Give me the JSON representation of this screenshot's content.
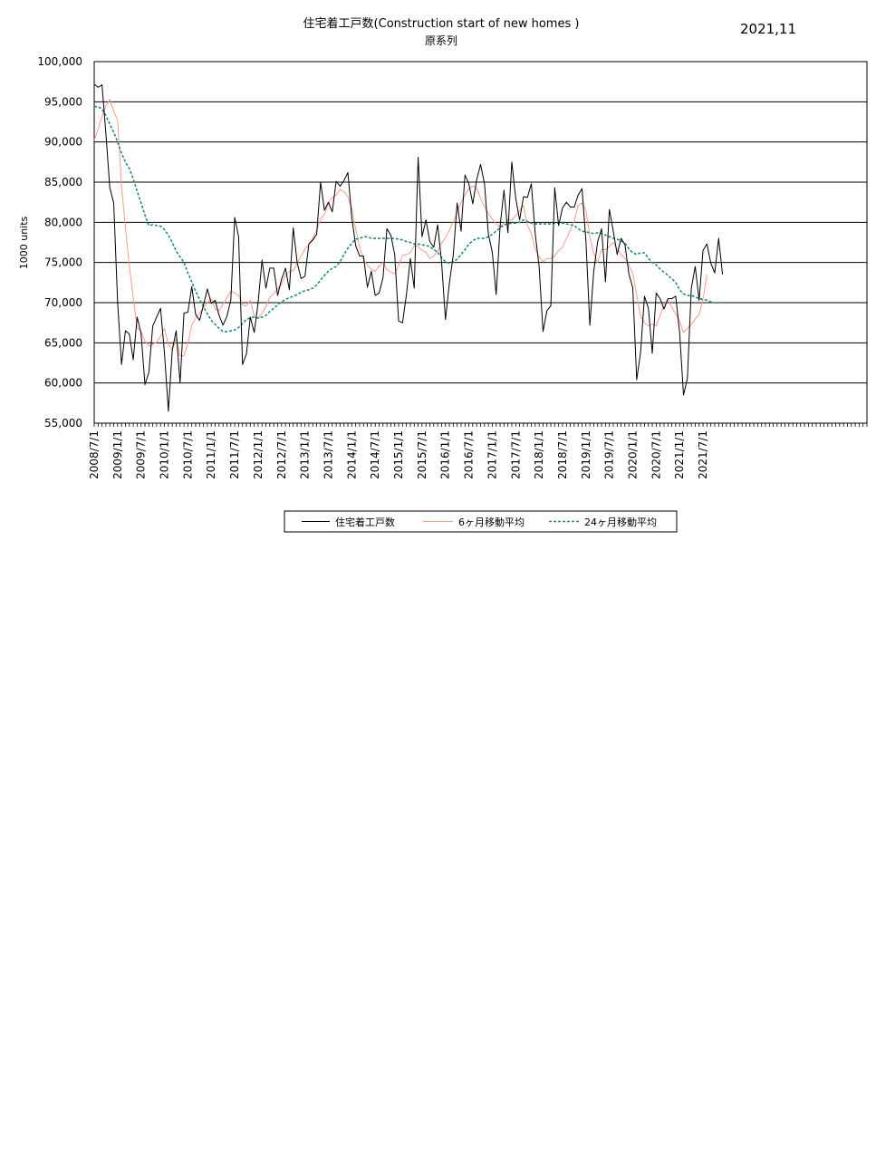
{
  "header": {
    "title": "住宅着工戸数(Construction start of new homes )",
    "subtitle": "原系列",
    "date": "2021,11"
  },
  "chart_data": {
    "type": "line",
    "title": "住宅着工戸数(Construction start of new homes )",
    "subtitle": "原系列",
    "ylabel": "1000 units",
    "xlabel": "",
    "ylim": [
      55000,
      100000
    ],
    "y_ticks": [
      "100,000",
      "95,000",
      "90,000",
      "85,000",
      "80,000",
      "75,000",
      "70,000",
      "65,000",
      "60,000",
      "55,000"
    ],
    "x_tick_labels": [
      "2008/7/1",
      "2009/1/1",
      "2009/7/1",
      "2010/1/1",
      "2010/7/1",
      "2011/1/1",
      "2011/7/1",
      "2012/1/1",
      "2012/7/1",
      "2013/1/1",
      "2013/7/1",
      "2014/1/1",
      "2014/7/1",
      "2015/1/1",
      "2015/7/1",
      "2016/1/1",
      "2016/7/1",
      "2017/1/1",
      "2017/7/1",
      "2018/1/1",
      "2018/7/1",
      "2019/1/1",
      "2019/7/1",
      "2020/1/1",
      "2020/7/1",
      "2021/1/1",
      "2021/7/1"
    ],
    "x_start": "2008/7/1",
    "x_end": "2025/1/1",
    "grid": "horizontal",
    "legend_position": "bottom",
    "series": [
      {
        "name": "住宅着工戸数",
        "color": "#000000",
        "style": "solid",
        "values": [
          97200,
          96800,
          97100,
          91000,
          84300,
          82400,
          70000,
          62300,
          66500,
          66100,
          62900,
          68200,
          66200,
          59800,
          61300,
          67100,
          68200,
          69300,
          63700,
          56500,
          64100,
          66500,
          60000,
          68700,
          68800,
          72000,
          68500,
          67800,
          69700,
          71700,
          69900,
          70300,
          68400,
          67200,
          68300,
          70300,
          80600,
          78200,
          62300,
          63600,
          68200,
          66300,
          70000,
          75300,
          71800,
          74300,
          74300,
          70900,
          72900,
          74300,
          71600,
          79300,
          75000,
          73000,
          73300,
          77300,
          77800,
          78500,
          85000,
          81500,
          82500,
          81300,
          85100,
          84500,
          85200,
          86200,
          80600,
          77100,
          75800,
          75800,
          71900,
          73900,
          70900,
          71200,
          73100,
          79200,
          78400,
          76000,
          67700,
          67500,
          71000,
          75500,
          71800,
          88100,
          78200,
          80300,
          77600,
          76900,
          79700,
          75100,
          67900,
          72400,
          75900,
          82400,
          78900,
          85900,
          84800,
          82300,
          85300,
          87200,
          84800,
          78500,
          76300,
          71000,
          79500,
          84000,
          78700,
          87500,
          83000,
          80300,
          83200,
          83100,
          84800,
          78600,
          74500,
          66400,
          69000,
          69600,
          84300,
          79600,
          81800,
          82500,
          81900,
          81900,
          83400,
          84200,
          77600,
          67200,
          73900,
          77600,
          79200,
          72600,
          81600,
          78900,
          76000,
          78000,
          77200,
          73600,
          71800,
          60400,
          63800,
          70800,
          69300,
          63700,
          71200,
          70500,
          69200,
          70500,
          70500,
          70800,
          66300,
          58500,
          60600,
          71800,
          74500,
          70300,
          76500,
          77300,
          74900,
          73700,
          78000,
          73500
        ]
      },
      {
        "name": "6ヶ月移動平均",
        "color": "#ff9a8a",
        "style": "solid",
        "values": [
          90200,
          91600,
          93200,
          94500,
          95300,
          93800,
          92700,
          84500,
          79300,
          74600,
          70600,
          66900,
          66400,
          65200,
          64600,
          64800,
          65100,
          65800,
          66800,
          64800,
          64100,
          65500,
          63400,
          63400,
          64900,
          67200,
          68100,
          68700,
          69400,
          70000,
          70500,
          69200,
          69000,
          69800,
          70600,
          71400,
          71200,
          70900,
          69700,
          69600,
          70300,
          68300,
          68000,
          68700,
          69500,
          70700,
          71100,
          71700,
          72300,
          73400,
          73900,
          74000,
          74900,
          75800,
          76700,
          77200,
          78000,
          79000,
          80400,
          81000,
          82300,
          83100,
          83400,
          84100,
          83800,
          83200,
          81700,
          79200,
          76900,
          75300,
          74700,
          74100,
          73900,
          74500,
          75000,
          74100,
          73800,
          73600,
          74600,
          75900,
          76000,
          76200,
          77100,
          77000,
          76500,
          76300,
          75500,
          75800,
          76400,
          77400,
          78100,
          79000,
          80100,
          81200,
          82500,
          83400,
          84200,
          84500,
          84300,
          83000,
          82000,
          81100,
          80400,
          79800,
          79400,
          79900,
          80300,
          80300,
          80800,
          81500,
          82100,
          79600,
          78600,
          76700,
          75700,
          75100,
          75500,
          75500,
          75800,
          76500,
          76900,
          78000,
          79000,
          80200,
          82100,
          82400,
          81500,
          78200,
          76100,
          75000,
          76600,
          76600,
          77000,
          77500,
          76700,
          76000,
          75500,
          74700,
          73600,
          70900,
          68300,
          67500,
          67100,
          67300,
          67100,
          68400,
          69700,
          70400,
          69400,
          68600,
          67700,
          66300,
          66800,
          67300,
          68000,
          68500,
          70400,
          73500
        ]
      },
      {
        "name": "24ヶ月移動平均",
        "color": "#1e8c8c",
        "style": "dashed",
        "values": [
          94400,
          94400,
          94100,
          93300,
          92200,
          91200,
          90000,
          88600,
          87500,
          86700,
          85400,
          83900,
          82400,
          80900,
          79600,
          79700,
          79600,
          79500,
          79100,
          78400,
          77500,
          76400,
          75700,
          75000,
          73700,
          72600,
          71400,
          70400,
          69500,
          68600,
          67800,
          67300,
          66800,
          66400,
          66400,
          66500,
          66600,
          66900,
          67400,
          67900,
          68100,
          68200,
          68100,
          68200,
          68400,
          68900,
          69300,
          69700,
          70100,
          70400,
          70600,
          70800,
          71000,
          71300,
          71500,
          71600,
          71800,
          72200,
          72800,
          73400,
          73900,
          74300,
          74500,
          75100,
          76000,
          76800,
          77400,
          77900,
          78000,
          78200,
          78200,
          78000,
          78000,
          78000,
          78000,
          78000,
          78000,
          78000,
          77900,
          77800,
          77600,
          77500,
          77300,
          77300,
          77200,
          77100,
          77000,
          76600,
          76300,
          75600,
          75100,
          74900,
          75100,
          75400,
          76000,
          76600,
          77300,
          77700,
          78000,
          78000,
          78000,
          78200,
          78500,
          78900,
          79300,
          79700,
          79800,
          79900,
          79900,
          80000,
          80300,
          80100,
          79900,
          79800,
          79800,
          79800,
          79800,
          79800,
          79900,
          79900,
          79900,
          79800,
          79700,
          79600,
          79200,
          78900,
          78800,
          78700,
          78600,
          78700,
          78600,
          78400,
          78200,
          78000,
          77900,
          77700,
          77400,
          76700,
          76200,
          76000,
          76200,
          76200,
          75500,
          75000,
          74700,
          74200,
          73800,
          73400,
          73000,
          72500,
          71600,
          71100,
          70900,
          70900,
          70700,
          70500,
          70400,
          70300,
          70100,
          70000,
          70000,
          70000
        ]
      }
    ]
  }
}
